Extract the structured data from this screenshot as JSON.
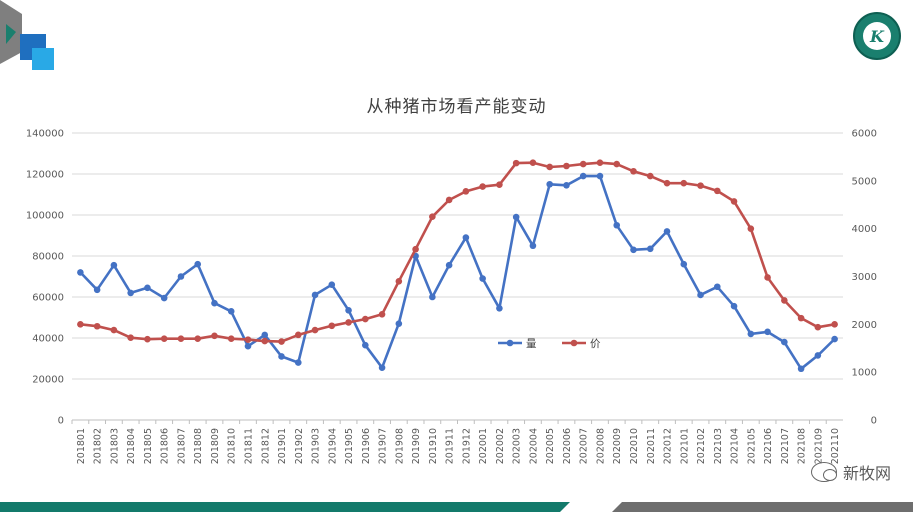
{
  "chart_data": {
    "type": "line",
    "title": "从种猪市场看产能变动",
    "categories": [
      "201801",
      "201802",
      "201803",
      "201804",
      "201805",
      "201806",
      "201807",
      "201808",
      "201809",
      "201810",
      "201811",
      "201812",
      "201901",
      "201902",
      "201903",
      "201904",
      "201905",
      "201906",
      "201907",
      "201908",
      "201909",
      "201910",
      "201911",
      "201912",
      "202001",
      "202002",
      "202003",
      "202004",
      "202005",
      "202006",
      "202007",
      "202008",
      "202009",
      "202010",
      "202011",
      "202012",
      "202101",
      "202102",
      "202103",
      "202104",
      "202105",
      "202106",
      "202107",
      "202108",
      "202109",
      "202110"
    ],
    "series": [
      {
        "name": "量",
        "axis": "left",
        "color": "#4472c4",
        "values": [
          72000,
          63500,
          75500,
          62000,
          64500,
          59500,
          70000,
          76000,
          57000,
          53000,
          36000,
          41500,
          31000,
          28000,
          61000,
          66000,
          53500,
          36500,
          25500,
          47000,
          80000,
          60000,
          75500,
          89000,
          69000,
          54500,
          99000,
          85000,
          115000,
          114500,
          119000,
          119000,
          95000,
          83000,
          83500,
          92000,
          76000,
          61000,
          65000,
          55500,
          42000,
          43000,
          38000,
          25000,
          31500,
          39500
        ]
      },
      {
        "name": "价",
        "axis": "right",
        "color": "#c0504d",
        "values": [
          2000,
          1960,
          1880,
          1720,
          1690,
          1700,
          1700,
          1700,
          1760,
          1700,
          1680,
          1650,
          1640,
          1780,
          1880,
          1970,
          2040,
          2110,
          2210,
          2900,
          3570,
          4250,
          4600,
          4780,
          4880,
          4920,
          5370,
          5380,
          5290,
          5310,
          5350,
          5380,
          5350,
          5200,
          5100,
          4950,
          4950,
          4900,
          4790,
          4570,
          4000,
          2980,
          2500,
          2130,
          1940,
          2000
        ]
      }
    ],
    "y_left": {
      "min": 0,
      "max": 140000,
      "ticks": [
        0,
        20000,
        40000,
        60000,
        80000,
        100000,
        120000,
        140000
      ]
    },
    "y_right": {
      "min": 0,
      "max": 6000,
      "ticks": [
        0,
        1000,
        2000,
        3000,
        4000,
        5000,
        6000
      ]
    },
    "legend_position": "center",
    "grid": true
  },
  "watermark": {
    "text": "新牧网"
  },
  "logo": {
    "text": "K"
  },
  "colors": {
    "accent_blue": "#1f6fbf",
    "accent_teal": "#1a7f6e",
    "bottom_bar_teal": "#137a6b",
    "bottom_bar_gray": "#6e6e6e"
  }
}
